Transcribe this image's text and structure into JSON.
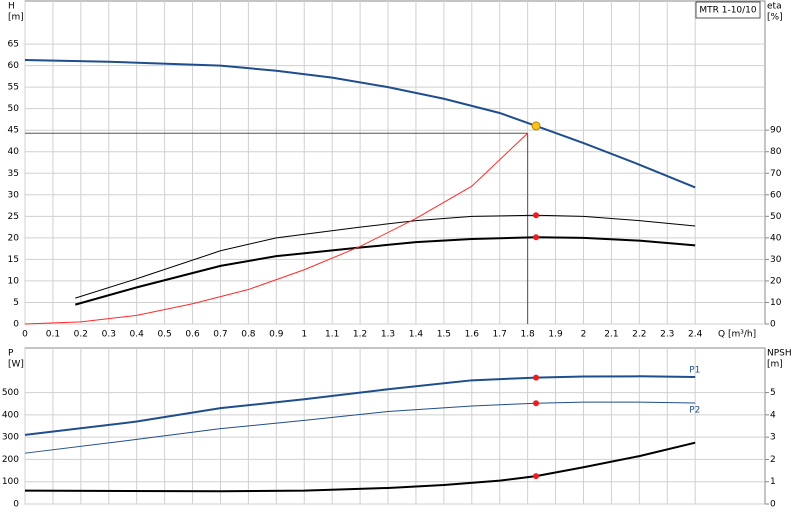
{
  "chart_data": [
    {
      "type": "line",
      "title": "MTR 1-10/10",
      "y_label": "H",
      "y_unit": "[m]",
      "y2_label": "eta",
      "y2_unit": "[%]",
      "x_label": "Q [m³/h]",
      "xlim": [
        0,
        2.65
      ],
      "xticks": [
        0,
        0.1,
        0.2,
        0.3,
        0.4,
        0.5,
        0.6,
        0.7,
        0.8,
        0.9,
        1.0,
        1.1,
        1.2,
        1.3,
        1.4,
        1.5,
        1.6,
        1.7,
        1.8,
        1.9,
        2.0,
        2.1,
        2.2,
        2.3,
        2.4
      ],
      "ylim": [
        0,
        75
      ],
      "yticks": [
        0,
        5,
        10,
        15,
        20,
        25,
        30,
        35,
        40,
        45,
        50,
        55,
        60,
        65
      ],
      "y2lim": [
        0,
        150
      ],
      "y2ticks": [
        0,
        10,
        20,
        30,
        40,
        50,
        60,
        70,
        80,
        90
      ],
      "grid": true,
      "series": [
        {
          "color": "#1f4e8c",
          "line_width": 2,
          "axis": "y",
          "x": [
            0,
            0.3,
            0.7,
            0.9,
            1.1,
            1.3,
            1.5,
            1.7,
            1.83,
            2.0,
            2.2,
            2.4
          ],
          "values": [
            61.3,
            60.9,
            60,
            58.8,
            57.2,
            55,
            52.3,
            49,
            46,
            42,
            37,
            31.7
          ]
        },
        {
          "color": "#000000",
          "line_width": 1,
          "axis": "y2",
          "x": [
            0.18,
            0.4,
            0.7,
            0.9,
            1.2,
            1.4,
            1.6,
            1.83,
            2.0,
            2.2,
            2.4
          ],
          "values": [
            12,
            21,
            34,
            40,
            45,
            48,
            50,
            50.5,
            50,
            48,
            45.5
          ]
        },
        {
          "color": "#000000",
          "line_width": 2,
          "axis": "y2",
          "x": [
            0.18,
            0.4,
            0.7,
            0.9,
            1.2,
            1.4,
            1.6,
            1.83,
            2.0,
            2.2,
            2.4
          ],
          "values": [
            9,
            17,
            27,
            31.5,
            35.5,
            38,
            39.5,
            40.3,
            40,
            38.7,
            36.5
          ]
        },
        {
          "color": "#ff2a2a",
          "line_width": 1,
          "axis": "y",
          "x": [
            0,
            0.2,
            0.4,
            0.6,
            0.8,
            1.0,
            1.2,
            1.4,
            1.6,
            1.8
          ],
          "values": [
            0,
            0.5,
            2,
            4.7,
            8,
            12.6,
            18,
            24.5,
            32,
            44.3
          ]
        }
      ],
      "guide": {
        "x": 1.8,
        "y": 44.3
      },
      "markers": [
        {
          "x": 1.83,
          "y": 46,
          "axis": "y",
          "color": "#f5c518"
        },
        {
          "x": 1.83,
          "y": 50.5,
          "axis": "y2",
          "color": "#ee1c1c"
        },
        {
          "x": 1.83,
          "y": 40.3,
          "axis": "y2",
          "color": "#ee1c1c"
        }
      ]
    },
    {
      "type": "line",
      "y_label": "P",
      "y_unit": "[W]",
      "y2_label": "NPSH",
      "y2_unit": "[m]",
      "xlim": [
        0,
        2.65
      ],
      "xticks": [
        0,
        0.1,
        0.2,
        0.3,
        0.4,
        0.5,
        0.6,
        0.7,
        0.8,
        0.9,
        1.0,
        1.1,
        1.2,
        1.3,
        1.4,
        1.5,
        1.6,
        1.7,
        1.8,
        1.9,
        2.0,
        2.1,
        2.2,
        2.3,
        2.4
      ],
      "ylim": [
        0,
        700
      ],
      "yticks": [
        0,
        100,
        200,
        300,
        400,
        500
      ],
      "y2lim": [
        0,
        7
      ],
      "y2ticks": [
        0,
        1,
        2,
        3,
        4,
        5
      ],
      "grid": true,
      "series": [
        {
          "name": "P1",
          "color": "#1f4e8c",
          "line_width": 2,
          "axis": "y",
          "x": [
            0,
            0.4,
            0.7,
            1.0,
            1.3,
            1.6,
            1.83,
            2.0,
            2.2,
            2.4
          ],
          "values": [
            310,
            370,
            430,
            470,
            515,
            555,
            567,
            572,
            573,
            570
          ]
        },
        {
          "name": "P2",
          "color": "#1f4e8c",
          "line_width": 1,
          "axis": "y",
          "x": [
            0,
            0.4,
            0.7,
            1.0,
            1.3,
            1.6,
            1.83,
            2.0,
            2.2,
            2.4
          ],
          "values": [
            228,
            290,
            338,
            375,
            415,
            440,
            452,
            457,
            457,
            453
          ]
        },
        {
          "color": "#000000",
          "line_width": 2,
          "axis": "y2",
          "x": [
            0,
            0.7,
            1.0,
            1.3,
            1.5,
            1.7,
            1.83,
            2.0,
            2.2,
            2.4
          ],
          "values": [
            0.6,
            0.57,
            0.6,
            0.72,
            0.85,
            1.05,
            1.25,
            1.65,
            2.15,
            2.75
          ]
        }
      ],
      "markers": [
        {
          "x": 1.83,
          "y": 567,
          "axis": "y",
          "color": "#ee1c1c"
        },
        {
          "x": 1.83,
          "y": 452,
          "axis": "y",
          "color": "#ee1c1c"
        },
        {
          "x": 1.83,
          "y": 1.25,
          "axis": "y2",
          "color": "#ee1c1c"
        }
      ]
    }
  ]
}
